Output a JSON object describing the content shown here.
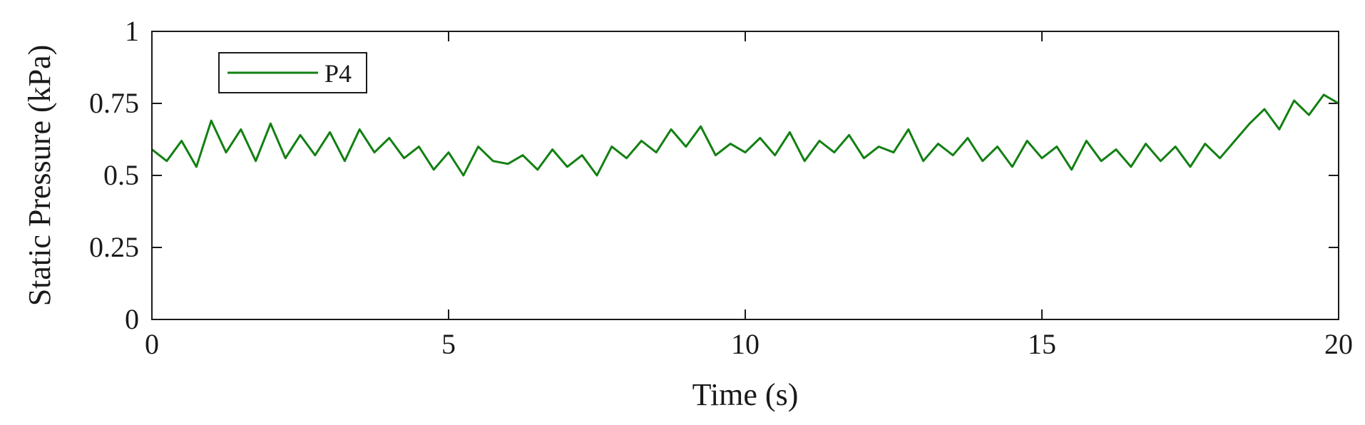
{
  "chart_data": {
    "type": "line",
    "title": "",
    "xlabel": "Time (s)",
    "ylabel": "Static Pressure (kPa)",
    "xlim": [
      0,
      20
    ],
    "ylim": [
      0,
      1
    ],
    "xticks": [
      0,
      5,
      10,
      15,
      20
    ],
    "yticks": [
      0,
      0.25,
      0.5,
      0.75,
      1
    ],
    "xtick_labels": [
      "0",
      "5",
      "10",
      "15",
      "20"
    ],
    "ytick_labels": [
      "0",
      "0.25",
      "0.5",
      "0.75",
      "1"
    ],
    "grid": false,
    "legend_position": "top-left",
    "colors": {
      "series": "#128012",
      "axes": "#1a1a1a"
    },
    "series": [
      {
        "name": "P4",
        "x": [
          0,
          0.25,
          0.5,
          0.75,
          1,
          1.25,
          1.5,
          1.75,
          2,
          2.25,
          2.5,
          2.75,
          3,
          3.25,
          3.5,
          3.75,
          4,
          4.25,
          4.5,
          4.75,
          5,
          5.25,
          5.5,
          5.75,
          6,
          6.25,
          6.5,
          6.75,
          7,
          7.25,
          7.5,
          7.75,
          8,
          8.25,
          8.5,
          8.75,
          9,
          9.25,
          9.5,
          9.75,
          10,
          10.25,
          10.5,
          10.75,
          11,
          11.25,
          11.5,
          11.75,
          12,
          12.25,
          12.5,
          12.75,
          13,
          13.25,
          13.5,
          13.75,
          14,
          14.25,
          14.5,
          14.75,
          15,
          15.25,
          15.5,
          15.75,
          16,
          16.25,
          16.5,
          16.75,
          17,
          17.25,
          17.5,
          17.75,
          18,
          18.25,
          18.5,
          18.75,
          19,
          19.25,
          19.5,
          19.75,
          20
        ],
        "y": [
          0.59,
          0.55,
          0.62,
          0.53,
          0.69,
          0.58,
          0.66,
          0.55,
          0.68,
          0.56,
          0.64,
          0.57,
          0.65,
          0.55,
          0.66,
          0.58,
          0.63,
          0.56,
          0.6,
          0.52,
          0.58,
          0.5,
          0.6,
          0.55,
          0.54,
          0.57,
          0.52,
          0.59,
          0.53,
          0.57,
          0.5,
          0.6,
          0.56,
          0.62,
          0.58,
          0.66,
          0.6,
          0.67,
          0.57,
          0.61,
          0.58,
          0.63,
          0.57,
          0.65,
          0.55,
          0.62,
          0.58,
          0.64,
          0.56,
          0.6,
          0.58,
          0.66,
          0.55,
          0.61,
          0.57,
          0.63,
          0.55,
          0.6,
          0.53,
          0.62,
          0.56,
          0.6,
          0.52,
          0.62,
          0.55,
          0.59,
          0.53,
          0.61,
          0.55,
          0.6,
          0.53,
          0.61,
          0.56,
          0.62,
          0.68,
          0.73,
          0.66,
          0.76,
          0.71,
          0.78,
          0.75
        ]
      }
    ]
  }
}
